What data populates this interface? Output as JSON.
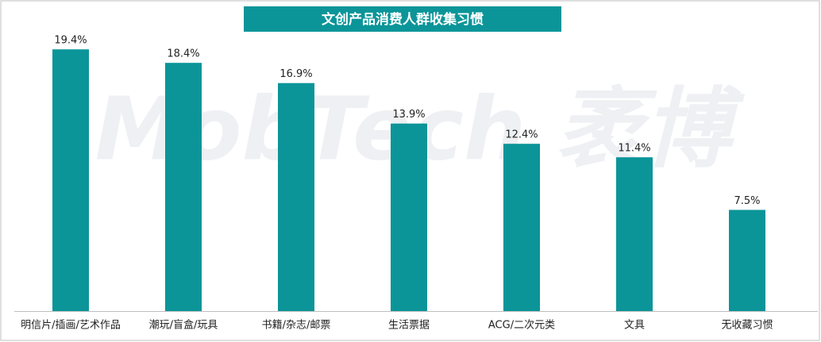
{
  "chart_data": {
    "type": "bar",
    "title": "文创产品消费人群收集习惯",
    "watermark": "MobTech 袤博",
    "categories": [
      "明信片/插画/艺术作品",
      "潮玩/盲盒/玩具",
      "书籍/杂志/邮票",
      "生活票据",
      "ACG/二次元类",
      "文具",
      "无收藏习惯"
    ],
    "values": [
      19.4,
      18.4,
      16.9,
      13.9,
      12.4,
      11.4,
      7.5
    ],
    "value_labels": [
      "19.4%",
      "18.4%",
      "16.9%",
      "13.9%",
      "12.4%",
      "11.4%",
      "7.5%"
    ],
    "color": "#0b9599",
    "ylim": [
      0,
      20
    ]
  }
}
